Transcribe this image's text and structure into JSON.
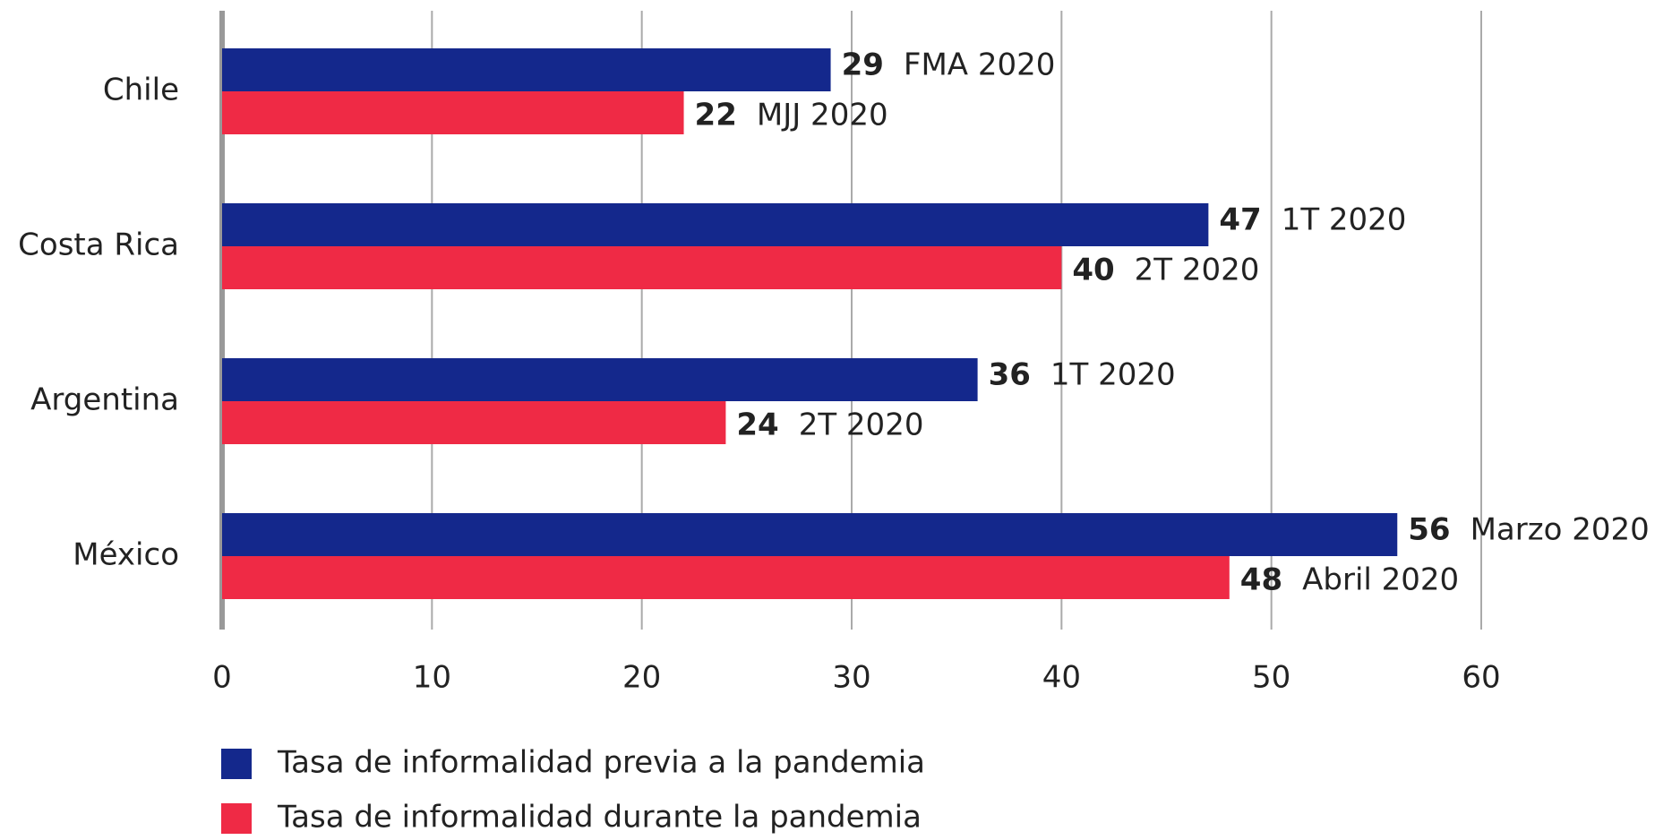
{
  "chart_data": {
    "type": "hbar",
    "categories": [
      "Chile",
      "Costa Rica",
      "Argentina",
      "México"
    ],
    "series": [
      {
        "name": "Tasa de informalidad previa a la pandemia",
        "color": "#14288c",
        "values": [
          29,
          47,
          36,
          56
        ],
        "periods": [
          "FMA 2020",
          "1T 2020",
          "1T 2020",
          "Marzo 2020"
        ]
      },
      {
        "name": "Tasa de informalidad durante la pandemia",
        "color": "#ef2a45",
        "values": [
          22,
          40,
          24,
          48
        ],
        "periods": [
          "MJJ 2020",
          "2T 2020",
          "2T 2020",
          "Abril 2020"
        ]
      }
    ],
    "xlim": [
      0,
      60
    ],
    "xticks": [
      0,
      10,
      20,
      30,
      40,
      50,
      60
    ],
    "grid": true
  }
}
